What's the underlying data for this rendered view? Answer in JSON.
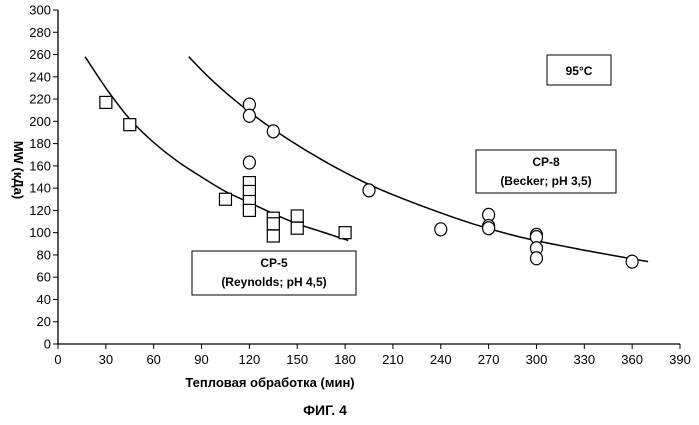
{
  "chart_data": {
    "type": "scatter",
    "xlabel": "Тепловая обработка (мин)",
    "ylabel": "MW (кДа)",
    "caption": "ФИГ. 4",
    "annotation": "95°C",
    "xlim": [
      0,
      390
    ],
    "ylim": [
      0,
      300
    ],
    "xticks": [
      0,
      30,
      60,
      90,
      120,
      150,
      180,
      210,
      240,
      270,
      300,
      330,
      360,
      390
    ],
    "yticks": [
      0,
      20,
      40,
      60,
      80,
      100,
      120,
      140,
      160,
      180,
      200,
      220,
      240,
      260,
      280,
      300
    ],
    "grid": false,
    "series": [
      {
        "name": "CP-5",
        "label_line1": "CP-5",
        "label_line2": "(Reynolds; pH 4,5)",
        "marker": "square",
        "points": [
          [
            30,
            217
          ],
          [
            45,
            197
          ],
          [
            105,
            130
          ],
          [
            120,
            145
          ],
          [
            120,
            137
          ],
          [
            120,
            128
          ],
          [
            120,
            120
          ],
          [
            135,
            113
          ],
          [
            135,
            108
          ],
          [
            135,
            97
          ],
          [
            150,
            115
          ],
          [
            150,
            104
          ],
          [
            180,
            100
          ]
        ],
        "fit_curve": [
          [
            17,
            258
          ],
          [
            30,
            230
          ],
          [
            45,
            202
          ],
          [
            60,
            181
          ],
          [
            75,
            164
          ],
          [
            90,
            150
          ],
          [
            105,
            137
          ],
          [
            120,
            127
          ],
          [
            135,
            117
          ],
          [
            150,
            108
          ],
          [
            165,
            101
          ],
          [
            182,
            93
          ]
        ]
      },
      {
        "name": "CP-8",
        "label_line1": "CP-8",
        "label_line2": "(Becker; pH 3,5)",
        "marker": "circle",
        "points": [
          [
            120,
            215
          ],
          [
            120,
            205
          ],
          [
            120,
            163
          ],
          [
            135,
            191
          ],
          [
            195,
            138
          ],
          [
            240,
            103
          ],
          [
            270,
            116
          ],
          [
            270,
            106
          ],
          [
            270,
            104
          ],
          [
            300,
            98
          ],
          [
            300,
            96
          ],
          [
            300,
            86
          ],
          [
            300,
            77
          ],
          [
            360,
            74
          ]
        ],
        "fit_curve": [
          [
            82,
            258
          ],
          [
            95,
            239
          ],
          [
            110,
            220
          ],
          [
            125,
            203
          ],
          [
            140,
            188
          ],
          [
            160,
            170
          ],
          [
            180,
            154
          ],
          [
            200,
            140
          ],
          [
            230,
            123
          ],
          [
            260,
            108
          ],
          [
            290,
            96
          ],
          [
            320,
            87
          ],
          [
            350,
            79
          ],
          [
            370,
            74
          ]
        ]
      }
    ]
  }
}
